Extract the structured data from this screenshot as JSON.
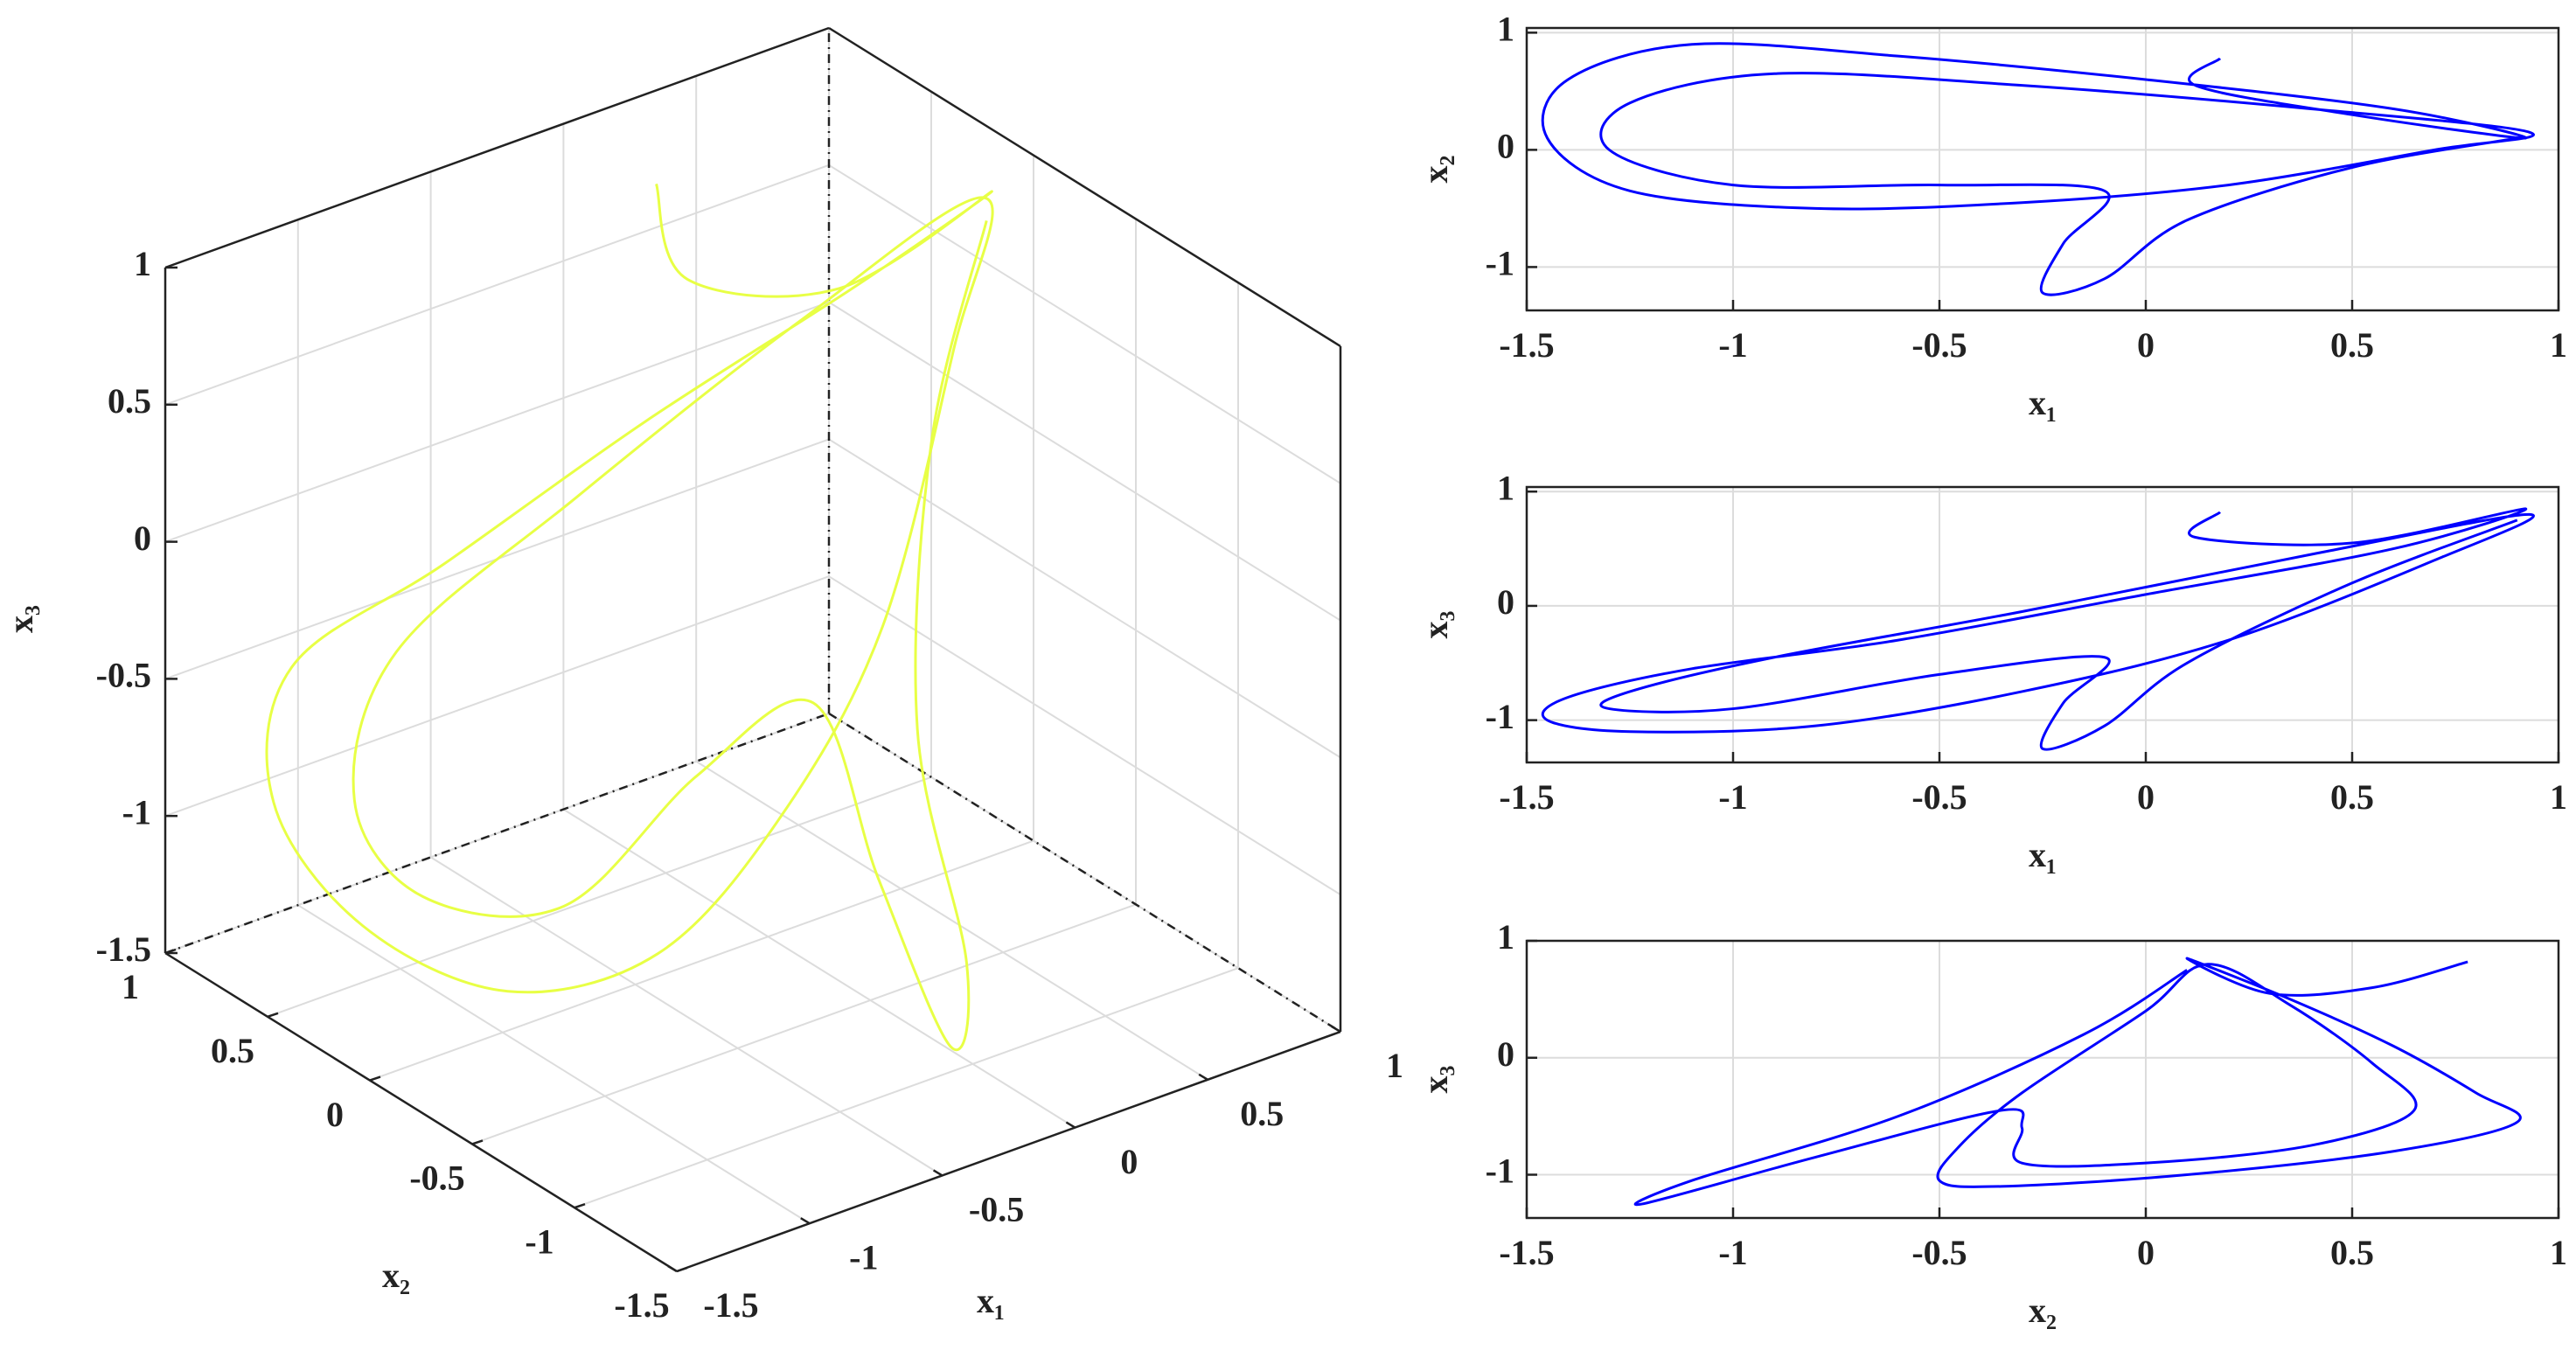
{
  "chart_data": [
    {
      "type": "line3d",
      "color": "#e8ff45",
      "grid": true,
      "xlabel": "x₁",
      "ylabel": "x₂",
      "zlabel": "x₃",
      "xlim": [
        -1.5,
        1
      ],
      "ylim": [
        -1.5,
        1
      ],
      "zlim": [
        -1.5,
        1
      ],
      "xticks": [
        -1.5,
        -1,
        -0.5,
        0,
        0.5,
        1
      ],
      "yticks": [
        -1.5,
        -1,
        -0.5,
        0,
        0.5,
        1
      ],
      "zticks": [
        -1.5,
        -1,
        -0.5,
        0,
        0.5,
        1
      ],
      "x": [
        0.18,
        0.12,
        0.5,
        0.92,
        0.6,
        0,
        -0.6,
        -1.1,
        -1.4,
        -1.45,
        -1.25,
        -0.8,
        -0.3,
        0.2,
        0.7,
        0.93,
        0.4,
        -0.3,
        -0.9,
        -1.25,
        -1.3,
        -1.0,
        -0.5,
        -0.1,
        -0.2,
        -0.25,
        -0.1,
        0.1,
        0.5,
        0.9
      ],
      "y": [
        0.78,
        0.55,
        0.3,
        0.1,
        0.35,
        0.6,
        0.8,
        0.9,
        0.6,
        0.1,
        -0.35,
        -0.5,
        -0.45,
        -0.3,
        0,
        0.15,
        0.35,
        0.55,
        0.65,
        0.4,
        0,
        -0.3,
        -0.3,
        -0.35,
        -0.8,
        -1.22,
        -1.1,
        -0.6,
        -0.15,
        0.1
      ],
      "z": [
        0.82,
        0.6,
        0.55,
        0.85,
        0.5,
        0.1,
        -0.3,
        -0.55,
        -0.8,
        -1.0,
        -1.1,
        -1.05,
        -0.75,
        -0.3,
        0.4,
        0.8,
        0.45,
        -0.05,
        -0.45,
        -0.75,
        -0.9,
        -0.9,
        -0.6,
        -0.45,
        -0.85,
        -1.25,
        -1.05,
        -0.5,
        0.2,
        0.75
      ]
    },
    {
      "type": "line",
      "xlabel": "x₁",
      "ylabel": "x₂",
      "grid": true,
      "xlim": [
        -1.5,
        1
      ],
      "ylim": [
        -1.37,
        1.04
      ],
      "xticks": [
        -1.5,
        -1,
        -0.5,
        0,
        0.5,
        1
      ],
      "yticks": [
        -1,
        0,
        1
      ],
      "x": [
        0.18,
        0.12,
        0.5,
        0.92,
        0.6,
        0,
        -0.6,
        -1.1,
        -1.4,
        -1.45,
        -1.25,
        -0.8,
        -0.3,
        0.2,
        0.7,
        0.93,
        0.4,
        -0.3,
        -0.9,
        -1.25,
        -1.3,
        -1.0,
        -0.5,
        -0.1,
        -0.2,
        -0.25,
        -0.1,
        0.1,
        0.5,
        0.9
      ],
      "series": [
        {
          "color": "#0000ff",
          "values": [
            0.78,
            0.55,
            0.3,
            0.1,
            0.35,
            0.6,
            0.8,
            0.9,
            0.6,
            0.1,
            -0.35,
            -0.5,
            -0.45,
            -0.3,
            0,
            0.15,
            0.35,
            0.55,
            0.65,
            0.4,
            0,
            -0.3,
            -0.3,
            -0.35,
            -0.8,
            -1.22,
            -1.1,
            -0.6,
            -0.15,
            0.1
          ]
        }
      ]
    },
    {
      "type": "line",
      "xlabel": "x₁",
      "ylabel": "x₃",
      "grid": true,
      "xlim": [
        -1.5,
        1
      ],
      "ylim": [
        -1.37,
        1.04
      ],
      "xticks": [
        -1.5,
        -1,
        -0.5,
        0,
        0.5,
        1
      ],
      "yticks": [
        -1,
        0,
        1
      ],
      "x": [
        0.18,
        0.12,
        0.5,
        0.92,
        0.6,
        0,
        -0.6,
        -1.1,
        -1.4,
        -1.45,
        -1.25,
        -0.8,
        -0.3,
        0.2,
        0.7,
        0.93,
        0.4,
        -0.3,
        -0.9,
        -1.25,
        -1.3,
        -1.0,
        -0.5,
        -0.1,
        -0.2,
        -0.25,
        -0.1,
        0.1,
        0.5,
        0.9
      ],
      "series": [
        {
          "color": "#0000ff",
          "values": [
            0.82,
            0.6,
            0.55,
            0.85,
            0.5,
            0.1,
            -0.3,
            -0.55,
            -0.8,
            -1.0,
            -1.1,
            -1.05,
            -0.75,
            -0.3,
            0.4,
            0.8,
            0.45,
            -0.05,
            -0.45,
            -0.75,
            -0.9,
            -0.9,
            -0.6,
            -0.45,
            -0.85,
            -1.25,
            -1.05,
            -0.5,
            0.2,
            0.75
          ]
        }
      ]
    },
    {
      "type": "line",
      "xlabel": "x₂",
      "ylabel": "x₃",
      "grid": true,
      "xlim": [
        -1.5,
        1
      ],
      "ylim": [
        -1.37,
        1.0
      ],
      "xticks": [
        -1.5,
        -1,
        -0.5,
        0,
        0.5,
        1
      ],
      "yticks": [
        -1,
        0,
        1
      ],
      "x": [
        0.78,
        0.55,
        0.3,
        0.1,
        0.35,
        0.6,
        0.8,
        0.9,
        0.6,
        0.1,
        -0.35,
        -0.5,
        -0.45,
        -0.3,
        0,
        0.15,
        0.35,
        0.55,
        0.65,
        0.4,
        0,
        -0.3,
        -0.3,
        -0.35,
        -0.8,
        -1.22,
        -1.1,
        -0.6,
        -0.15,
        0.1
      ],
      "series": [
        {
          "color": "#0000ff",
          "values": [
            0.82,
            0.6,
            0.55,
            0.85,
            0.5,
            0.1,
            -0.3,
            -0.55,
            -0.8,
            -1.0,
            -1.1,
            -1.05,
            -0.75,
            -0.3,
            0.4,
            0.8,
            0.45,
            -0.05,
            -0.45,
            -0.75,
            -0.9,
            -0.9,
            -0.6,
            -0.45,
            -0.85,
            -1.25,
            -1.05,
            -0.5,
            0.2,
            0.75
          ]
        }
      ]
    }
  ]
}
